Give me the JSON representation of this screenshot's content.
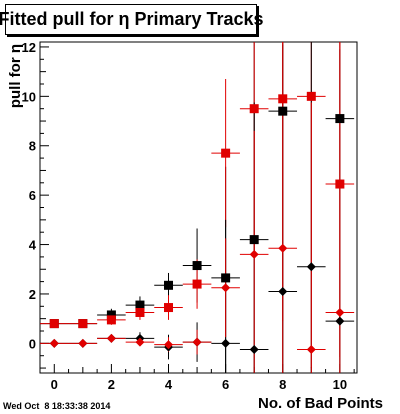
{
  "timestamp": "Wed Oct  8 18:33:38 2014",
  "chart_data": {
    "type": "scatter",
    "title": "Fitted pull for η Primary Tracks",
    "xlabel": "No. of Bad Points",
    "ylabel": "pull for η",
    "xlim": [
      -0.5,
      10.6
    ],
    "ylim": [
      -1.2,
      12.2
    ],
    "xticks": [
      "0",
      "2",
      "4",
      "6",
      "8",
      "10"
    ],
    "yticks": [
      "0",
      "2",
      "4",
      "6",
      "8",
      "10",
      "12"
    ],
    "x": [
      0,
      1,
      2,
      3,
      4,
      5,
      6,
      7,
      8,
      9,
      10
    ],
    "series": [
      {
        "marker": "square",
        "color": "#000000",
        "values": [
          0.8,
          0.8,
          1.15,
          1.55,
          2.35,
          3.15,
          2.65,
          4.2,
          9.4,
          null,
          9.1
        ],
        "yerr": [
          0.1,
          0.1,
          0.25,
          0.35,
          0.5,
          1.5,
          4.5,
          11,
          11,
          null,
          11
        ]
      },
      {
        "marker": "square",
        "color": "#e00000",
        "values": [
          0.8,
          0.8,
          0.95,
          1.25,
          1.45,
          2.4,
          7.7,
          9.5,
          9.9,
          10.0,
          6.45
        ],
        "yerr": [
          0.1,
          0.1,
          0.2,
          0.3,
          0.5,
          1.0,
          3.0,
          6,
          9,
          11,
          7
        ]
      },
      {
        "marker": "diamond",
        "color": "#000000",
        "values": [
          0.0,
          0.0,
          0.2,
          0.2,
          -0.15,
          0.05,
          0.0,
          -0.25,
          2.1,
          3.1,
          0.9
        ],
        "yerr": [
          0.05,
          0.05,
          0.15,
          0.25,
          0.5,
          0.8,
          5,
          10,
          10,
          11,
          11
        ]
      },
      {
        "marker": "diamond",
        "color": "#e00000",
        "values": [
          0.0,
          0.0,
          0.2,
          0.05,
          -0.05,
          0.05,
          2.25,
          3.6,
          3.85,
          -0.25,
          1.25
        ],
        "yerr": [
          0.05,
          0.05,
          0.1,
          0.15,
          0.3,
          0.5,
          2.0,
          5,
          10,
          10,
          11
        ]
      }
    ]
  }
}
